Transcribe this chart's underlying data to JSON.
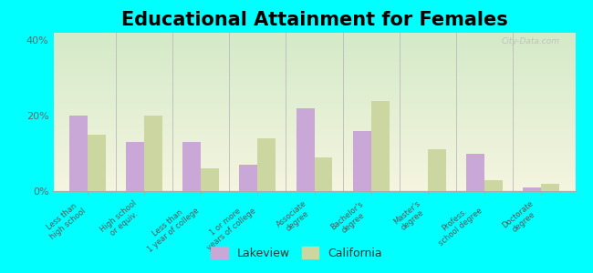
{
  "title": "Educational Attainment for Females",
  "categories": [
    "Less than\nhigh school",
    "High school\nor equiv.",
    "Less than\n1 year of college",
    "1 or more\nyears of college",
    "Associate\ndegree",
    "Bachelor's\ndegree",
    "Master's\ndegree",
    "Profess.\nschool degree",
    "Doctorate\ndegree"
  ],
  "lakeview": [
    20,
    13,
    13,
    7,
    22,
    16,
    0,
    10,
    1
  ],
  "california": [
    15,
    20,
    6,
    14,
    9,
    24,
    11,
    3,
    2
  ],
  "lakeview_color": "#c9a8d8",
  "california_color": "#ccd6a0",
  "background_fig": "#00ffff",
  "ylim": [
    0,
    42
  ],
  "yticks": [
    0,
    20,
    40
  ],
  "ytick_labels": [
    "0%",
    "20%",
    "40%"
  ],
  "title_fontsize": 15,
  "legend_labels": [
    "Lakeview",
    "California"
  ],
  "grad_top": "#d4eac8",
  "grad_bottom": "#f5f5e0"
}
